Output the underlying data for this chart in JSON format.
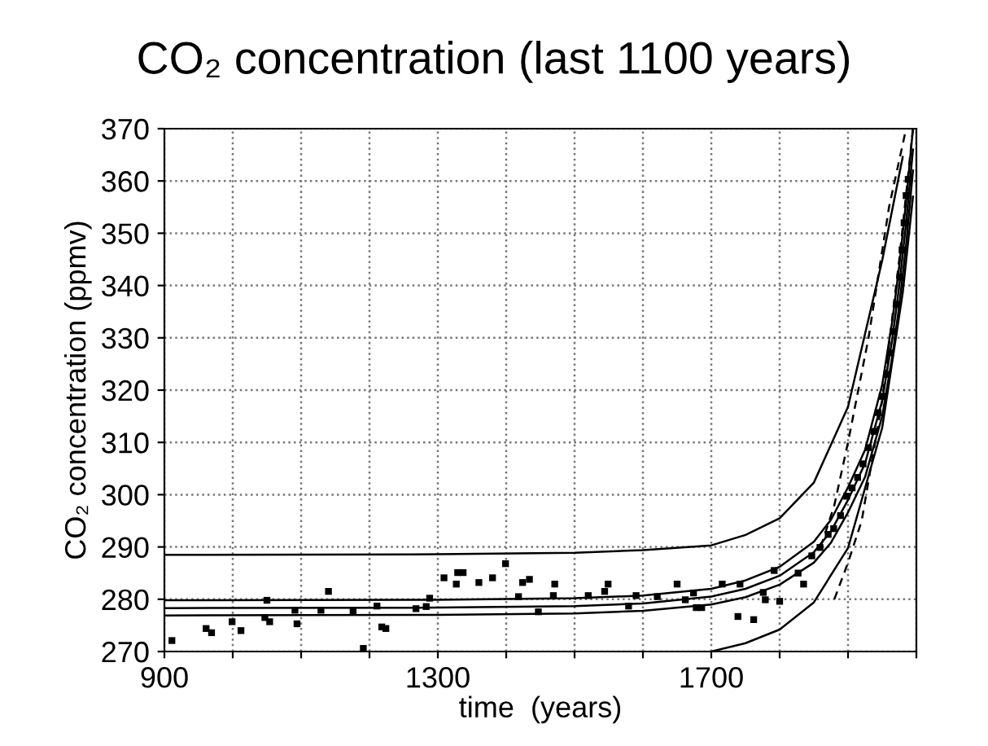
{
  "chart_data": {
    "type": "scatter",
    "title": "CO₂ concentration (last 1100 years)",
    "xlabel": "time  (years)",
    "ylabel": "CO₂ concentration (ppmv)",
    "xlim": [
      900,
      2000
    ],
    "ylim": [
      270,
      370
    ],
    "xticks": [
      900,
      {
        "value": 1000,
        "label": null
      },
      {
        "value": 1100,
        "label": null
      },
      {
        "value": 1200,
        "label": null
      },
      1300,
      {
        "value": 1400,
        "label": null
      },
      {
        "value": 1500,
        "label": null
      },
      {
        "value": 1600,
        "label": null
      },
      1700,
      {
        "value": 1800,
        "label": null
      },
      {
        "value": 1900,
        "label": null
      },
      {
        "value": 2000,
        "label": null
      }
    ],
    "yticks": [
      270,
      280,
      290,
      300,
      310,
      320,
      330,
      340,
      350,
      360,
      370
    ],
    "grid": true,
    "series": [
      {
        "marker": "square",
        "color": "#000000",
        "x": [
          911,
          961,
          969,
          999,
          1012,
          1047,
          1050,
          1054,
          1091,
          1094,
          1129,
          1140,
          1176,
          1191,
          1211,
          1218,
          1224,
          1268,
          1283,
          1288,
          1309,
          1327,
          1329,
          1337,
          1360,
          1380,
          1399,
          1418,
          1424,
          1434,
          1447,
          1469,
          1471,
          1520,
          1544,
          1549,
          1579,
          1590,
          1621,
          1650,
          1662,
          1674,
          1678,
          1686,
          1716,
          1739,
          1742,
          1762,
          1776,
          1779,
          1792,
          1800,
          1827,
          1835,
          1847,
          1859,
          1871,
          1879,
          1889,
          1898,
          1906,
          1914,
          1922,
          1930,
          1938,
          1944,
          1950,
          1957,
          1962,
          1967,
          1971,
          1976,
          1979,
          1982,
          1985,
          1988
        ],
        "values": [
          272.1,
          274.4,
          273.6,
          275.7,
          274.0,
          276.5,
          279.8,
          275.7,
          277.9,
          275.3,
          277.9,
          281.5,
          277.6,
          270.6,
          278.7,
          274.7,
          274.4,
          278.2,
          278.6,
          280.2,
          284.1,
          282.9,
          285.1,
          285.1,
          283.2,
          284.1,
          286.8,
          280.5,
          283.2,
          283.8,
          277.6,
          280.7,
          282.9,
          280.7,
          281.5,
          282.9,
          278.7,
          280.7,
          280.5,
          282.9,
          279.9,
          281.2,
          278.4,
          278.4,
          282.9,
          276.7,
          282.9,
          276.1,
          281.3,
          279.9,
          285.5,
          279.6,
          285.0,
          282.9,
          288.3,
          289.9,
          292.4,
          293.5,
          296.0,
          299.7,
          301.3,
          303.3,
          305.9,
          309.0,
          312.1,
          315.7,
          318.8,
          323.0,
          327.1,
          331.2,
          336.4,
          341.6,
          346.8,
          352.0,
          357.2,
          360.3
        ]
      },
      {
        "type": "line",
        "line_style": "solid",
        "color": "#000000",
        "x": [
          900,
          1300,
          1500,
          1600,
          1700,
          1750,
          1800,
          1850,
          1875,
          1900,
          1925,
          1950,
          1965,
          1975,
          1985,
          1995
        ],
        "values": [
          278.3,
          278.4,
          278.7,
          279.2,
          280.5,
          282,
          284.5,
          289,
          293,
          299,
          306,
          318,
          330,
          340,
          352,
          366
        ]
      },
      {
        "type": "line",
        "line_style": "solid",
        "color": "#000000",
        "x": [
          900,
          1300,
          1500,
          1600,
          1700,
          1750,
          1800,
          1850,
          1875,
          1900,
          1925,
          1950,
          1965,
          1975,
          1985,
          1995
        ],
        "values": [
          279.8,
          279.9,
          280.2,
          280.7,
          282,
          283.6,
          286.2,
          291,
          295.2,
          301.4,
          308.6,
          321,
          333.4,
          343.8,
          356.2,
          370
        ]
      },
      {
        "type": "line",
        "line_style": "solid",
        "color": "#000000",
        "x": [
          900,
          1300,
          1500,
          1600,
          1700,
          1750,
          1800,
          1850,
          1875,
          1900,
          1925,
          1950,
          1965,
          1975,
          1985,
          1995
        ],
        "values": [
          276.9,
          277,
          277.3,
          277.8,
          279,
          280.4,
          282.8,
          287,
          290.8,
          296.6,
          303.4,
          315,
          326.6,
          336.2,
          347.8,
          362
        ]
      },
      {
        "type": "line",
        "line_style": "solid",
        "color": "#000000",
        "x": [
          900,
          1300,
          1500,
          1600,
          1700,
          1750,
          1800,
          1850,
          1900,
          1950,
          1980
        ],
        "values": [
          288.5,
          288.6,
          288.9,
          289.4,
          290.3,
          292.3,
          295.5,
          302.3,
          316.8,
          344.8,
          364.6
        ]
      },
      {
        "type": "line",
        "line_style": "solid",
        "color": "#000000",
        "x": [
          1700,
          1750,
          1800,
          1850,
          1900,
          1950,
          1980,
          1995
        ],
        "values": [
          270,
          271.6,
          274.2,
          279.4,
          289.8,
          312.8,
          338.6,
          357
        ]
      },
      {
        "type": "line",
        "line_style": "dashed",
        "color": "#000000",
        "x": [
          1860,
          1880,
          1900,
          1930,
          1960,
          1985
        ],
        "values": [
          290,
          298,
          310,
          330,
          355,
          370
        ]
      },
      {
        "type": "line",
        "line_style": "dashed",
        "color": "#000000",
        "x": [
          1880,
          1900,
          1920,
          1950,
          1975,
          1995
        ],
        "values": [
          280,
          287,
          295,
          318,
          345,
          370
        ]
      }
    ]
  }
}
